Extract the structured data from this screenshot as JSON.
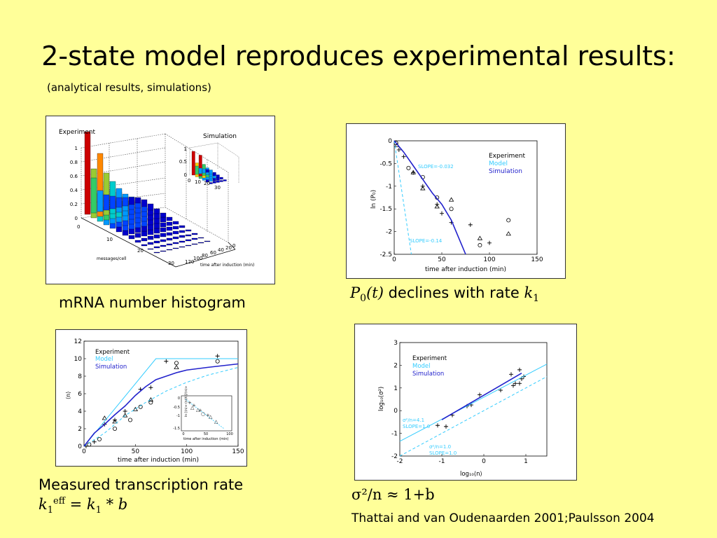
{
  "slide": {
    "title": "2-state model reproduces experimental results:",
    "subtitle": "(analytical results, simulations)",
    "citation": "Thattai and van Oudenaarden 2001;Paulsson 2004"
  },
  "captions": {
    "histogram": "mRNA number histogram",
    "decline_sym": "P",
    "decline_sub": "0",
    "decline_arg": "(t)",
    "decline_text": " declines with rate ",
    "decline_k": "k",
    "decline_k_sub": "1",
    "rate_line1": "Measured transcription rate",
    "rate_k": "k",
    "rate_sub": "1",
    "rate_sup": "eff",
    "rate_eq": " = ",
    "rate_k2": "k",
    "rate_sub2": "1",
    "rate_rest": " * b",
    "noise_formula": "σ²/n ≈ 1+b"
  },
  "colors": {
    "background": "#FFFF99",
    "model": "#33CCFF",
    "simulation": "#2222CC"
  },
  "panels": {
    "histogram": {
      "experiment_label": "Experiment",
      "simulation_label": "Simulation",
      "zticks": [
        "1",
        "0.8",
        "0.6",
        "0.4",
        "0.2",
        "0"
      ],
      "xticks": [
        "0",
        "10",
        "20",
        "30"
      ],
      "yticks": [
        "0",
        "20",
        "40",
        "60",
        "80",
        "100",
        "120"
      ],
      "xlabel": "messages/cell",
      "ylabel": "time after induction (min)",
      "sim_zticks": [
        "1",
        "0.5",
        "0"
      ],
      "sim_xticks": [
        "0",
        "10",
        "20",
        "30"
      ]
    },
    "decline": {
      "legend": [
        "Experiment",
        "Model",
        "Simulation"
      ],
      "slope_model": "SLOPE=-0.14",
      "slope_sim": "SLOPE=-0.032",
      "ylabel": "ln (P₀)",
      "xlabel": "time after induction (min)"
    },
    "rate": {
      "legend": [
        "Experiment",
        "Model",
        "Simulation"
      ],
      "ylabel": "⟨n⟩",
      "xlabel": "time after induction (min)",
      "inset_ylabel": "ln [⟨n⟩∞-⟨n⟩(t)]/⟨n⟩∞",
      "inset_xlabel": "time after induction (min)"
    },
    "noise": {
      "legend": [
        "Experiment",
        "Model",
        "Simulation"
      ],
      "ylabel": "log₁₀(σ²)",
      "xlabel": "log₁₀⟨n⟩",
      "ann1_line1": "σ²/n=4.1",
      "ann1_line2": "SLOPE=1.0",
      "ann2_line1": "σ²/n=1.0",
      "ann2_line2": "SLOPE=1.0"
    }
  },
  "chart_data": [
    {
      "type": "scatter",
      "xlabel": "time after induction (min)",
      "ylabel": "ln (P₀)",
      "xlim": [
        0,
        150
      ],
      "ylim": [
        -2.5,
        0
      ],
      "xticks": [
        0,
        50,
        100,
        150
      ],
      "yticks": [
        0,
        -0.5,
        -1,
        -1.5,
        -2,
        -2.5
      ],
      "series": [
        {
          "name": "Experiment",
          "marker": "+",
          "points": [
            [
              5,
              -0.2
            ],
            [
              10,
              -0.35
            ],
            [
              20,
              -0.7
            ],
            [
              30,
              -1.0
            ],
            [
              45,
              -1.4
            ],
            [
              50,
              -1.6
            ],
            [
              60,
              -1.8
            ],
            [
              80,
              -1.85
            ],
            [
              100,
              -2.25
            ]
          ]
        },
        {
          "name": "Experiment",
          "marker": "o",
          "points": [
            [
              2,
              -0.05
            ],
            [
              15,
              -0.6
            ],
            [
              30,
              -0.8
            ],
            [
              45,
              -1.25
            ],
            [
              60,
              -1.5
            ],
            [
              90,
              -2.3
            ],
            [
              120,
              -1.75
            ]
          ]
        },
        {
          "name": "Experiment",
          "marker": "triangle",
          "points": [
            [
              3,
              -0.1
            ],
            [
              20,
              -0.7
            ],
            [
              30,
              -1.05
            ],
            [
              45,
              -1.45
            ],
            [
              60,
              -1.3
            ],
            [
              90,
              -2.15
            ],
            [
              120,
              -2.05
            ]
          ]
        },
        {
          "name": "Model",
          "line": [
            [
              0,
              0
            ],
            [
              18,
              -2.5
            ]
          ],
          "style": "dashed"
        },
        {
          "name": "Simulation",
          "line": [
            [
              0,
              0
            ],
            [
              10,
              -0.25
            ],
            [
              20,
              -0.55
            ],
            [
              30,
              -0.85
            ],
            [
              40,
              -1.15
            ],
            [
              50,
              -1.4
            ],
            [
              60,
              -1.75
            ],
            [
              70,
              -2.25
            ],
            [
              75,
              -2.5
            ]
          ]
        }
      ]
    },
    {
      "type": "scatter",
      "xlabel": "time after induction (min)",
      "ylabel": "⟨n⟩",
      "xlim": [
        0,
        150
      ],
      "ylim": [
        0,
        12
      ],
      "xticks": [
        0,
        50,
        100,
        150
      ],
      "yticks": [
        0,
        2,
        4,
        6,
        8,
        10,
        12
      ],
      "series": [
        {
          "name": "Experiment",
          "marker": "+",
          "points": [
            [
              2,
              0
            ],
            [
              10,
              0.5
            ],
            [
              20,
              2.5
            ],
            [
              30,
              3
            ],
            [
              40,
              4
            ],
            [
              55,
              6.5
            ],
            [
              65,
              6.7
            ],
            [
              80,
              9.7
            ],
            [
              130,
              10.3
            ]
          ]
        },
        {
          "name": "Experiment",
          "marker": "o",
          "points": [
            [
              5,
              0.2
            ],
            [
              15,
              0.8
            ],
            [
              30,
              2
            ],
            [
              45,
              3
            ],
            [
              55,
              4.5
            ],
            [
              65,
              5
            ],
            [
              90,
              9.5
            ],
            [
              130,
              9.7
            ]
          ]
        },
        {
          "name": "Experiment",
          "marker": "triangle",
          "points": [
            [
              20,
              3.2
            ],
            [
              30,
              2.8
            ],
            [
              40,
              3.5
            ],
            [
              50,
              4.2
            ],
            [
              65,
              5.3
            ],
            [
              90,
              9
            ]
          ]
        },
        {
          "name": "Model",
          "line": [
            [
              0,
              0
            ],
            [
              70,
              10
            ],
            [
              150,
              10
            ]
          ],
          "style": "solid"
        },
        {
          "name": "Model",
          "line": [
            [
              0,
              0
            ],
            [
              20,
              1.5
            ],
            [
              40,
              3.5
            ],
            [
              60,
              5
            ],
            [
              80,
              6.3
            ],
            [
              100,
              7.3
            ],
            [
              120,
              8.1
            ],
            [
              150,
              9
            ]
          ],
          "style": "dashed"
        },
        {
          "name": "Simulation",
          "line": [
            [
              0,
              0
            ],
            [
              10,
              1.5
            ],
            [
              20,
              2.5
            ],
            [
              30,
              3.6
            ],
            [
              40,
              4.6
            ],
            [
              50,
              5.8
            ],
            [
              60,
              6.8
            ],
            [
              70,
              7.6
            ],
            [
              80,
              8.0
            ],
            [
              90,
              8.4
            ],
            [
              100,
              8.7
            ],
            [
              120,
              9.0
            ],
            [
              150,
              9.4
            ]
          ]
        }
      ]
    },
    {
      "type": "scatter",
      "xlabel": "log₁₀⟨n⟩",
      "ylabel": "log₁₀(σ²)",
      "xlim": [
        -2,
        1.5
      ],
      "ylim": [
        -2,
        3
      ],
      "xticks": [
        -2,
        -1,
        0,
        1
      ],
      "yticks": [
        3,
        2,
        1,
        0,
        -1,
        -2
      ],
      "series": [
        {
          "name": "Experiment",
          "marker": "+",
          "points": [
            [
              -1.1,
              -0.65
            ],
            [
              -0.9,
              -0.7
            ],
            [
              -0.75,
              -0.2
            ],
            [
              -0.4,
              0.2
            ],
            [
              -0.3,
              0.25
            ],
            [
              -0.1,
              0.7
            ],
            [
              0.4,
              0.9
            ],
            [
              0.65,
              1.6
            ],
            [
              0.7,
              1.1
            ],
            [
              0.75,
              1.2
            ],
            [
              0.85,
              1.8
            ],
            [
              0.85,
              1.2
            ],
            [
              0.9,
              1.4
            ],
            [
              0.95,
              1.5
            ]
          ]
        },
        {
          "name": "Model",
          "line": [
            [
              -2,
              -1.35
            ],
            [
              1.5,
              2.05
            ]
          ],
          "style": "solid"
        },
        {
          "name": "Model",
          "line": [
            [
              -2,
              -2
            ],
            [
              1.5,
              1.5
            ]
          ],
          "style": "dashed"
        },
        {
          "name": "Simulation",
          "line": [
            [
              -1,
              -0.4
            ],
            [
              0.9,
              1.65
            ]
          ],
          "style": "solid"
        }
      ]
    }
  ]
}
